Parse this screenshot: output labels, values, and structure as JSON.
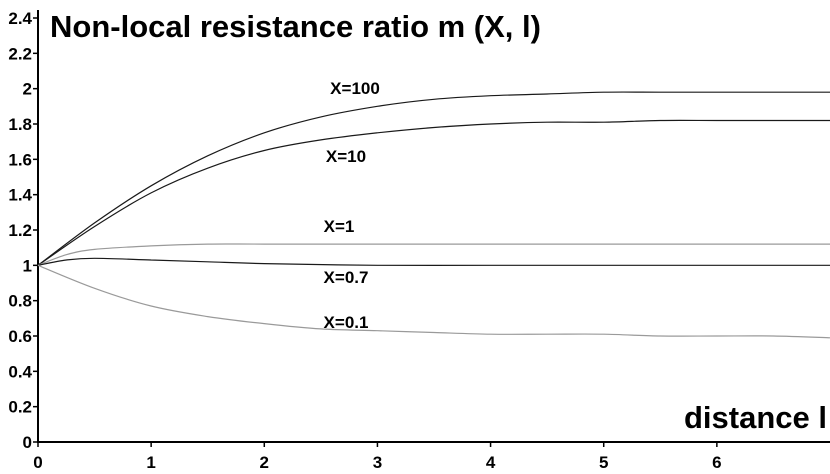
{
  "chart_data": {
    "type": "line",
    "title": "Non-local resistance ratio m (X, l)",
    "xlabel": "distance l",
    "ylabel": "",
    "xlim": [
      0,
      7
    ],
    "ylim": [
      0,
      2.4
    ],
    "x_ticks": [
      "0",
      "1",
      "2",
      "3",
      "4",
      "5",
      "6"
    ],
    "y_ticks": [
      "0",
      "0.2",
      "0.4",
      "0.6",
      "0.8",
      "1",
      "1.2",
      "1.4",
      "1.6",
      "1.8",
      "2",
      "2.2",
      "2.4"
    ],
    "grid": false,
    "series": [
      {
        "name": "X=100",
        "color": "#1a1a1a",
        "x": [
          0,
          0.5,
          1,
          1.5,
          2,
          2.5,
          3,
          3.5,
          4,
          4.5,
          5,
          5.5,
          6,
          6.5,
          7
        ],
        "y": [
          1,
          1.24,
          1.45,
          1.62,
          1.75,
          1.84,
          1.9,
          1.94,
          1.96,
          1.97,
          1.98,
          1.98,
          1.98,
          1.98,
          1.98
        ]
      },
      {
        "name": "X=10",
        "color": "#1a1a1a",
        "x": [
          0,
          0.5,
          1,
          1.5,
          2,
          2.5,
          3,
          3.5,
          4,
          4.5,
          5,
          5.5,
          6,
          6.5,
          7
        ],
        "y": [
          1,
          1.22,
          1.41,
          1.55,
          1.65,
          1.71,
          1.75,
          1.78,
          1.8,
          1.81,
          1.81,
          1.82,
          1.82,
          1.82,
          1.82
        ]
      },
      {
        "name": "X=1",
        "color": "#9a9a9a",
        "x": [
          0,
          0.25,
          0.5,
          1,
          1.5,
          2,
          3,
          4,
          5,
          6,
          7
        ],
        "y": [
          1,
          1.06,
          1.09,
          1.11,
          1.12,
          1.12,
          1.12,
          1.12,
          1.12,
          1.12,
          1.12
        ]
      },
      {
        "name": "X=0.7",
        "color": "#1a1a1a",
        "x": [
          0,
          0.25,
          0.5,
          1,
          1.5,
          2,
          3,
          4,
          5,
          6,
          7
        ],
        "y": [
          1,
          1.03,
          1.04,
          1.03,
          1.02,
          1.01,
          1.0,
          1.0,
          1.0,
          1.0,
          1.0
        ]
      },
      {
        "name": "X=0.1",
        "color": "#9a9a9a",
        "x": [
          0,
          0.5,
          1,
          1.5,
          2,
          2.5,
          3,
          3.5,
          4,
          4.5,
          5,
          5.5,
          6,
          6.5,
          7
        ],
        "y": [
          1,
          0.87,
          0.77,
          0.71,
          0.67,
          0.64,
          0.63,
          0.62,
          0.61,
          0.61,
          0.61,
          0.6,
          0.6,
          0.6,
          0.59
        ]
      }
    ]
  }
}
